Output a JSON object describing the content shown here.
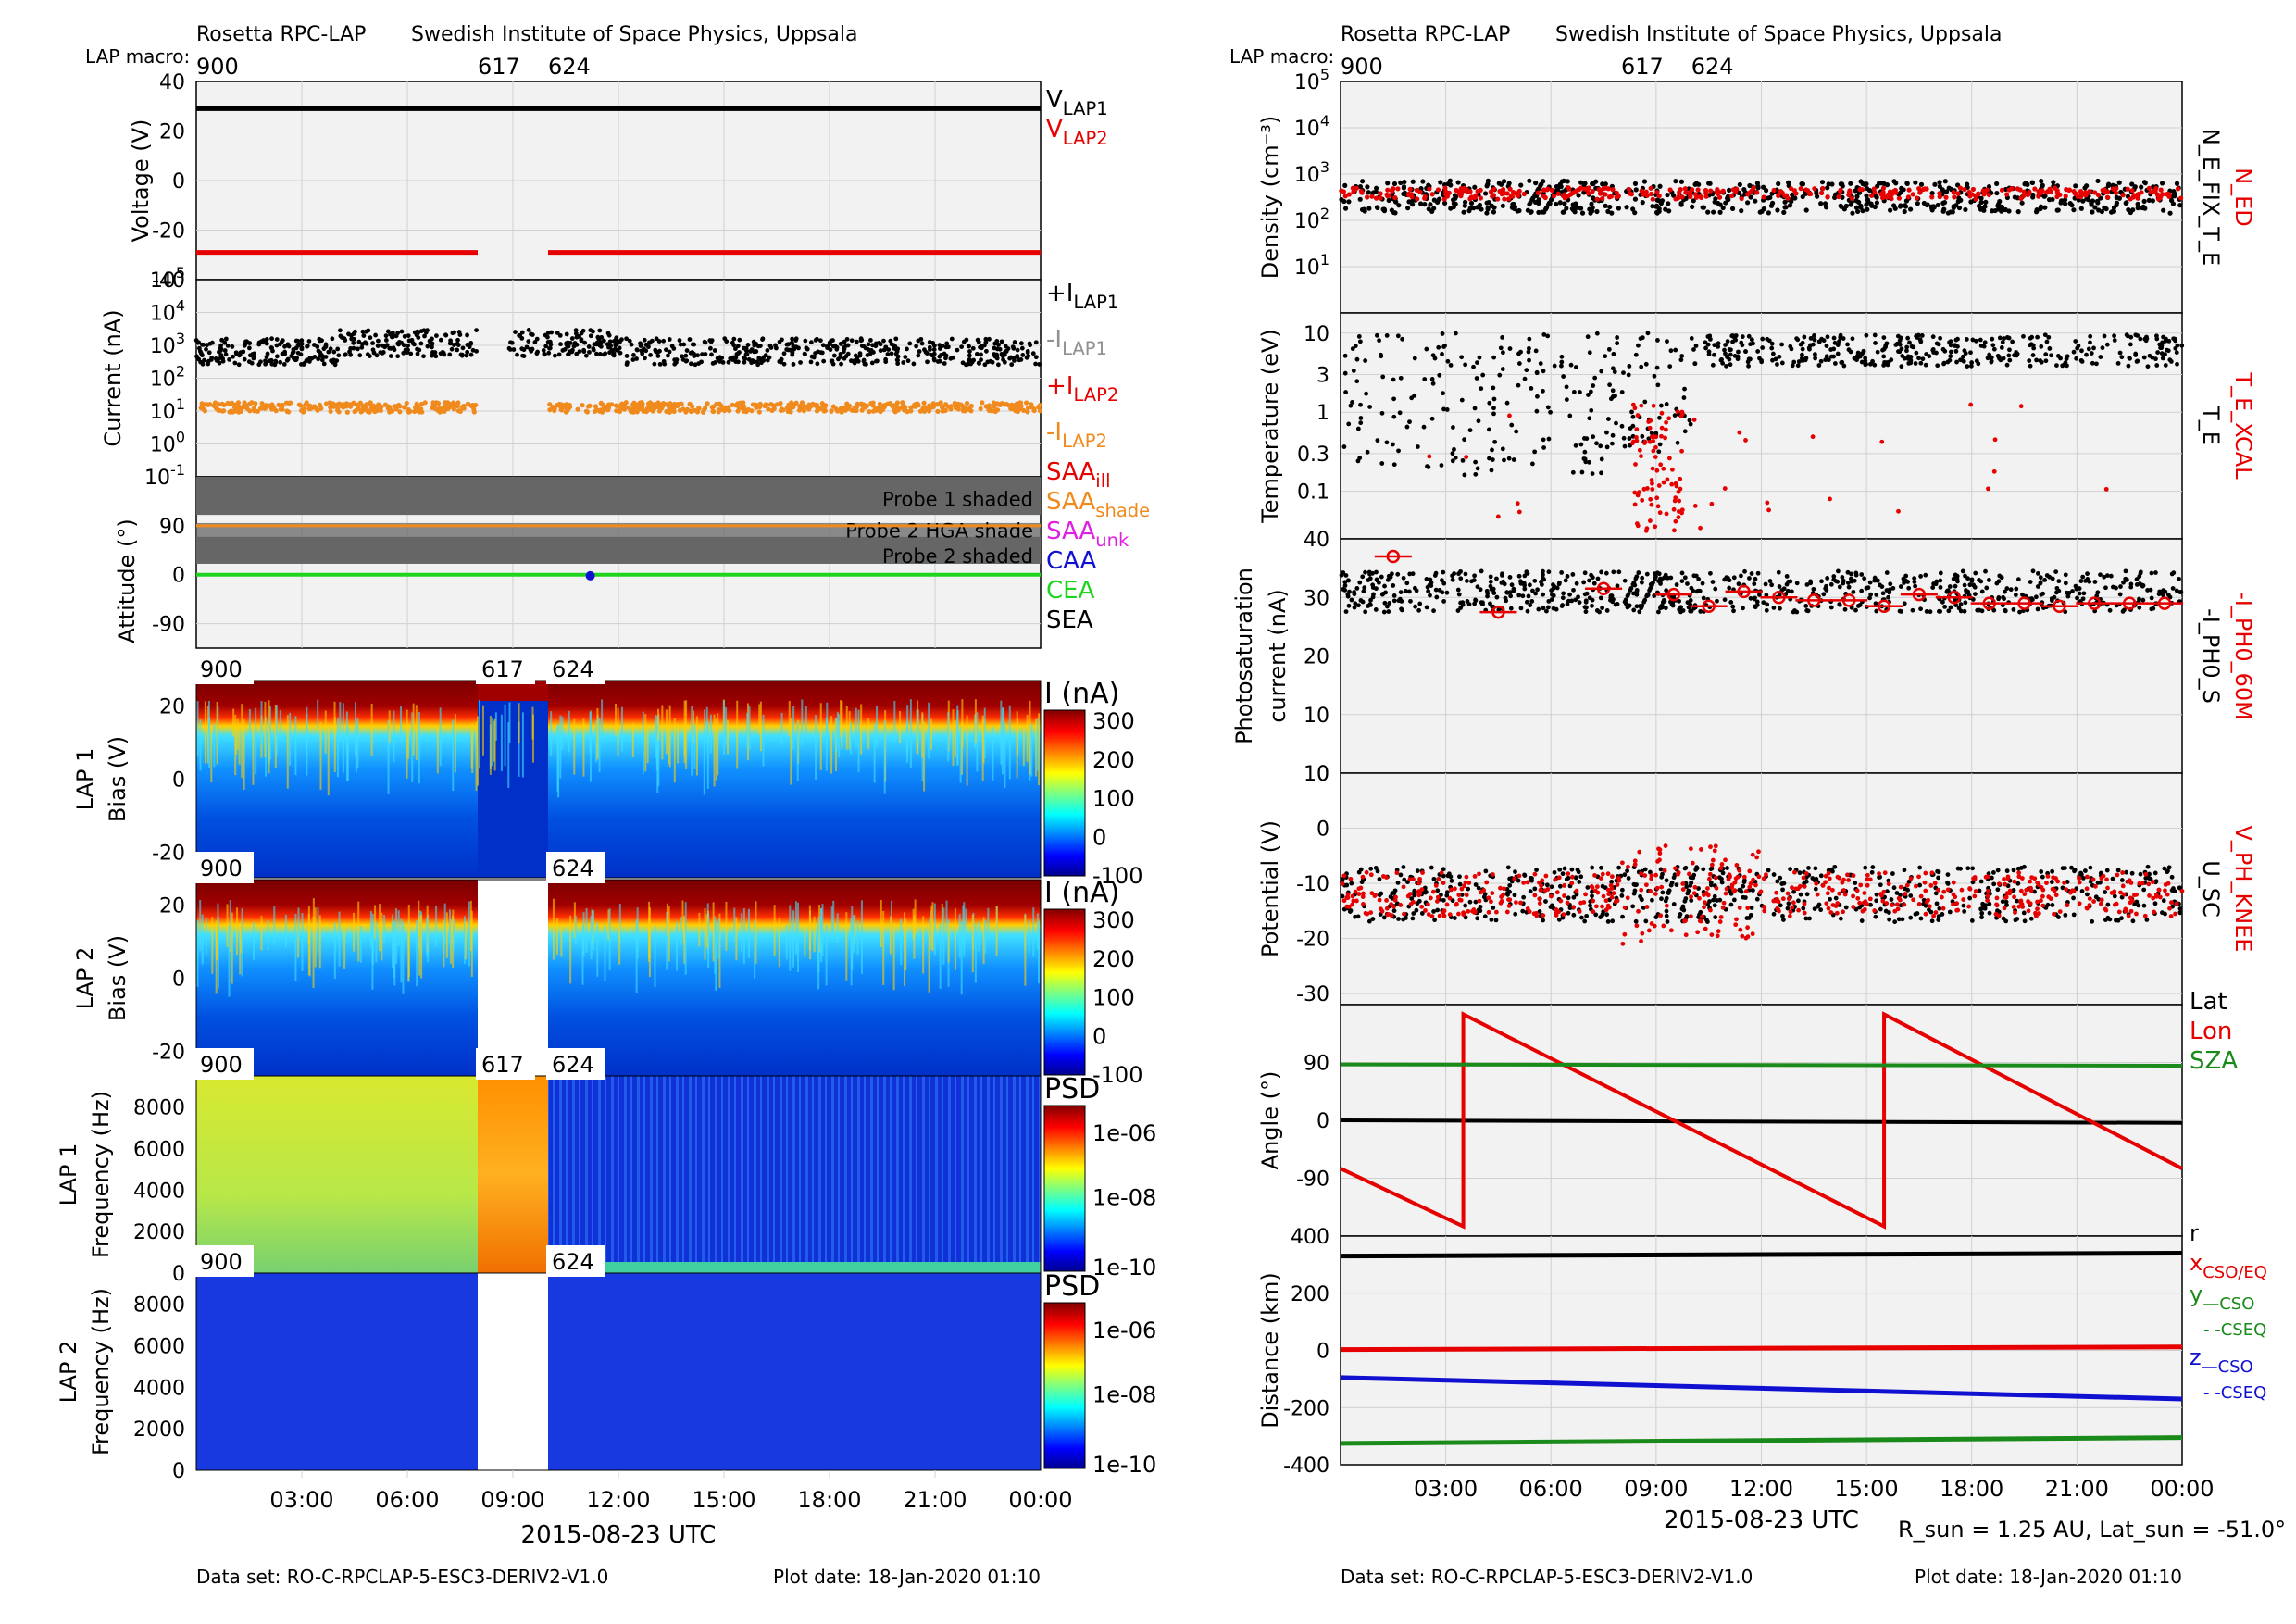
{
  "left_header": {
    "instrument": "Rosetta RPC-LAP",
    "institute": "Swedish Institute of Space Physics, Uppsala",
    "macro_label": "LAP macro:",
    "macros": [
      {
        "label": "900",
        "x": 0
      },
      {
        "label": "617",
        "x": 8
      },
      {
        "label": "624",
        "x": 10
      }
    ],
    "footer_dataset": "Data set: RO-C-RPCLAP-5-ESC3-DERIV2-V1.0",
    "footer_date": "Plot date: 18-Jan-2020 01:10",
    "xlabel": "2015-08-23 UTC"
  },
  "right_header": {
    "instrument": "Rosetta RPC-LAP",
    "institute": "Swedish Institute of Space Physics, Uppsala",
    "macro_label": "LAP macro:",
    "macros": [
      {
        "label": "900",
        "x": 0
      },
      {
        "label": "617",
        "x": 8
      },
      {
        "label": "624",
        "x": 10
      }
    ],
    "footer_dataset": "Data set: RO-C-RPCLAP-5-ESC3-DERIV2-V1.0",
    "footer_date": "Plot date: 18-Jan-2020 01:10",
    "xlabel": "2015-08-23 UTC",
    "rsun_text": "R_sun = 1.25 AU, Lat_sun = -51.0°"
  },
  "x_ticks": [
    "03:00",
    "06:00",
    "09:00",
    "12:00",
    "15:00",
    "18:00",
    "21:00",
    "00:00"
  ],
  "colors": {
    "black": "#000000",
    "red": "#e60000",
    "orange": "#f08a1c",
    "gray": "#909090",
    "green": "#1fd41f",
    "darkgreen": "#1a8a1a",
    "blue": "#1010d0",
    "magenta": "#e020e0",
    "panel_bg": "#f2f2f2",
    "shade": "#666666"
  },
  "chart_data": [
    {
      "type": "line",
      "panel": "voltage",
      "ylabel": "Voltage (V)",
      "ylim": [
        -40,
        40
      ],
      "yticks": [
        "40",
        "20",
        "0",
        "-20",
        "-40"
      ],
      "series": [
        {
          "name": "V_LAP1",
          "value": 29
        },
        {
          "name": "V_LAP2",
          "value": -29,
          "gaps": [
            [
              8,
              10
            ]
          ]
        }
      ],
      "legend": [
        {
          "main": "V",
          "sub": "LAP1",
          "color": "black"
        },
        {
          "main": "V",
          "sub": "LAP2",
          "color": "red"
        }
      ]
    },
    {
      "type": "scatter",
      "panel": "current",
      "ylabel": "Current (nA)",
      "yscale": "log",
      "ylim": [
        0.1,
        100000
      ],
      "yticks": [
        "10",
        "10",
        "10",
        "10",
        "10",
        "10",
        "10"
      ],
      "ytick_exp": [
        "5",
        "4",
        "3",
        "2",
        "1",
        "0",
        "-1"
      ],
      "series": [
        {
          "name": "+I_LAP1",
          "level": 700
        },
        {
          "name": "-I_LAP2",
          "level": 12
        }
      ],
      "legend": [
        {
          "main": "+I",
          "sub": "LAP1",
          "color": "black"
        },
        {
          "main": "-I",
          "sub": "LAP1",
          "color": "gray"
        },
        {
          "main": "+I",
          "sub": "LAP2",
          "color": "red"
        },
        {
          "main": "-I",
          "sub": "LAP2",
          "color": "orange"
        }
      ]
    },
    {
      "type": "line",
      "panel": "attitude",
      "ylabel": "Attitude (°)",
      "ylim": [
        -135,
        180
      ],
      "yticks": [
        "90",
        "0",
        "-90"
      ],
      "bands": [
        "Probe 1 shaded",
        "Probe 2 HGA shade",
        "Probe 2 shaded"
      ],
      "series": [
        {
          "name": "SAA_shade",
          "value": 90
        },
        {
          "name": "CEA",
          "value": 0
        }
      ],
      "legend": [
        {
          "main": "SAA",
          "sub": "ill",
          "color": "red"
        },
        {
          "main": "SAA",
          "sub": "shade",
          "color": "orange"
        },
        {
          "main": "SAA",
          "sub": "unk",
          "color": "magenta"
        },
        {
          "main": "CAA",
          "sub": "",
          "color": "blue"
        },
        {
          "main": "CEA",
          "sub": "",
          "color": "green"
        },
        {
          "main": "SEA",
          "sub": "",
          "color": "black"
        }
      ]
    },
    {
      "type": "heatmap",
      "panel": "lap1_bias",
      "ylabel1": "LAP 1",
      "ylabel2": "Bias (V)",
      "yticks": [
        "20",
        "0",
        "-20"
      ],
      "cb_title": "I (nA)",
      "cb_ticks": [
        "300",
        "200",
        "100",
        "0",
        "-100"
      ],
      "macros": [
        "900",
        "617",
        "624"
      ]
    },
    {
      "type": "heatmap",
      "panel": "lap2_bias",
      "ylabel1": "LAP 2",
      "ylabel2": "Bias (V)",
      "yticks": [
        "20",
        "0",
        "-20"
      ],
      "cb_title": "I (nA)",
      "cb_ticks": [
        "300",
        "200",
        "100",
        "0",
        "-100"
      ],
      "macros": [
        "900",
        "624"
      ]
    },
    {
      "type": "heatmap",
      "panel": "lap1_freq",
      "ylabel1": "LAP 1",
      "ylabel2": "Frequency (Hz)",
      "yticks": [
        "8000",
        "6000",
        "4000",
        "2000",
        "0"
      ],
      "cb_title": "PSD",
      "cb_ticks": [
        "1e-06",
        "1e-08",
        "1e-10"
      ],
      "macros": [
        "900",
        "617",
        "624"
      ]
    },
    {
      "type": "heatmap",
      "panel": "lap2_freq",
      "ylabel1": "LAP 2",
      "ylabel2": "Frequency (Hz)",
      "yticks": [
        "8000",
        "6000",
        "4000",
        "2000",
        "0"
      ],
      "cb_title": "PSD",
      "cb_ticks": [
        "1e-06",
        "1e-08",
        "1e-10"
      ],
      "macros": [
        "900",
        "624"
      ]
    },
    {
      "type": "scatter",
      "panel": "density",
      "ylabel": "Density (cm⁻³)",
      "yscale": "log",
      "ylim": [
        1,
        100000
      ],
      "yticks": [
        "10",
        "10",
        "10",
        "10",
        "10"
      ],
      "ytick_exp": [
        "5",
        "4",
        "3",
        "2",
        "1"
      ],
      "series": [
        {
          "name": "N_E_FIX_T_E",
          "level": 350
        },
        {
          "name": "N_ED",
          "level": 350
        }
      ],
      "side_labels": [
        {
          "text": "N_ED",
          "color": "red"
        },
        {
          "text": "N_E_FIX_T_E",
          "color": "black"
        }
      ]
    },
    {
      "type": "scatter",
      "panel": "temperature",
      "ylabel": "Temperature (eV)",
      "yscale": "log",
      "ylim": [
        0.02,
        20
      ],
      "yticks": [
        "10",
        "3",
        "1",
        "0.3",
        "0.1"
      ],
      "series": [
        {
          "name": "T_E",
          "level": 6
        },
        {
          "name": "T_E_XCAL",
          "level": 0.3
        }
      ],
      "side_labels": [
        {
          "text": "T_E_XCAL",
          "color": "red"
        },
        {
          "text": "T_E",
          "color": "black"
        }
      ]
    },
    {
      "type": "scatter",
      "panel": "photo",
      "ylabel1": "Photosaturation",
      "ylabel2": "current (nA)",
      "ylim": [
        0,
        40
      ],
      "yticks": [
        "40",
        "30",
        "20",
        "10",
        "0"
      ],
      "series": [
        {
          "name": "-I_PH0_S",
          "level": 31
        },
        {
          "name": "-I_PH0_60M",
          "x": [
            1.5,
            4.5,
            7.5,
            9.5,
            10.5,
            11.5,
            12.5,
            13.5,
            14.5,
            15.5,
            16.5,
            17.5,
            18.5,
            19.5,
            20.5,
            21.5,
            22.5,
            23.5
          ],
          "values": [
            37,
            27.5,
            31.5,
            30.5,
            28.5,
            31,
            30,
            29.5,
            29.5,
            28.5,
            30.5,
            30,
            29,
            29,
            28.5,
            29,
            29,
            29
          ]
        }
      ],
      "side_labels": [
        {
          "text": "-I_PH0_60M",
          "color": "red"
        },
        {
          "text": "-I_PH0_S",
          "color": "black"
        }
      ]
    },
    {
      "type": "scatter",
      "panel": "potential",
      "ylabel": "Potential (V)",
      "ylim": [
        -32,
        10
      ],
      "yticks": [
        "10",
        "0",
        "-10",
        "-20",
        "-30"
      ],
      "series": [
        {
          "name": "U_SC",
          "level": -12
        },
        {
          "name": "V_PH_KNEE",
          "level": -12
        }
      ],
      "side_labels": [
        {
          "text": "V_PH_KNEE",
          "color": "red"
        },
        {
          "text": "U_SC",
          "color": "black"
        }
      ]
    },
    {
      "type": "line",
      "panel": "angle",
      "ylabel": "Angle (°)",
      "ylim": [
        -180,
        180
      ],
      "yticks": [
        "90",
        "0",
        "-90"
      ],
      "series": [
        {
          "name": "Lat",
          "x": [
            0,
            24
          ],
          "values": [
            0,
            -4
          ]
        },
        {
          "name": "Lon",
          "x": [
            0,
            3.5,
            3.5,
            15.5,
            15.5,
            24
          ],
          "values": [
            -75,
            -165,
            165,
            -165,
            165,
            -75
          ]
        },
        {
          "name": "SZA",
          "x": [
            0,
            24
          ],
          "values": [
            87,
            85
          ]
        }
      ],
      "legend": [
        {
          "text": "Lat",
          "color": "black"
        },
        {
          "text": "Lon",
          "color": "red"
        },
        {
          "text": "SZA",
          "color": "darkgreen"
        }
      ]
    },
    {
      "type": "line",
      "panel": "distance",
      "ylabel": "Distance (km)",
      "ylim": [
        -400,
        400
      ],
      "yticks": [
        "400",
        "200",
        "0",
        "-200",
        "-400"
      ],
      "series": [
        {
          "name": "r",
          "x": [
            0,
            24
          ],
          "values": [
            330,
            340
          ]
        },
        {
          "name": "x_CSO/EQ",
          "x": [
            0,
            24
          ],
          "values": [
            3,
            12
          ]
        },
        {
          "name": "y_CSO",
          "x": [
            0,
            24
          ],
          "values": [
            -325,
            -305
          ]
        },
        {
          "name": "z_CSO",
          "x": [
            0,
            24
          ],
          "values": [
            -95,
            -170
          ]
        }
      ],
      "legend": [
        {
          "main": "r",
          "sub": "",
          "color": "black"
        },
        {
          "main": "x",
          "sub": "CSO/EQ",
          "color": "red"
        },
        {
          "main": "y",
          "sub": "—CSO",
          "color": "darkgreen"
        },
        {
          "main": "",
          "sub": "- -CSEQ",
          "color": "darkgreen"
        },
        {
          "main": "z",
          "sub": "—CSO",
          "color": "blue"
        },
        {
          "main": "",
          "sub": "- -CSEQ",
          "color": "blue"
        }
      ]
    }
  ]
}
